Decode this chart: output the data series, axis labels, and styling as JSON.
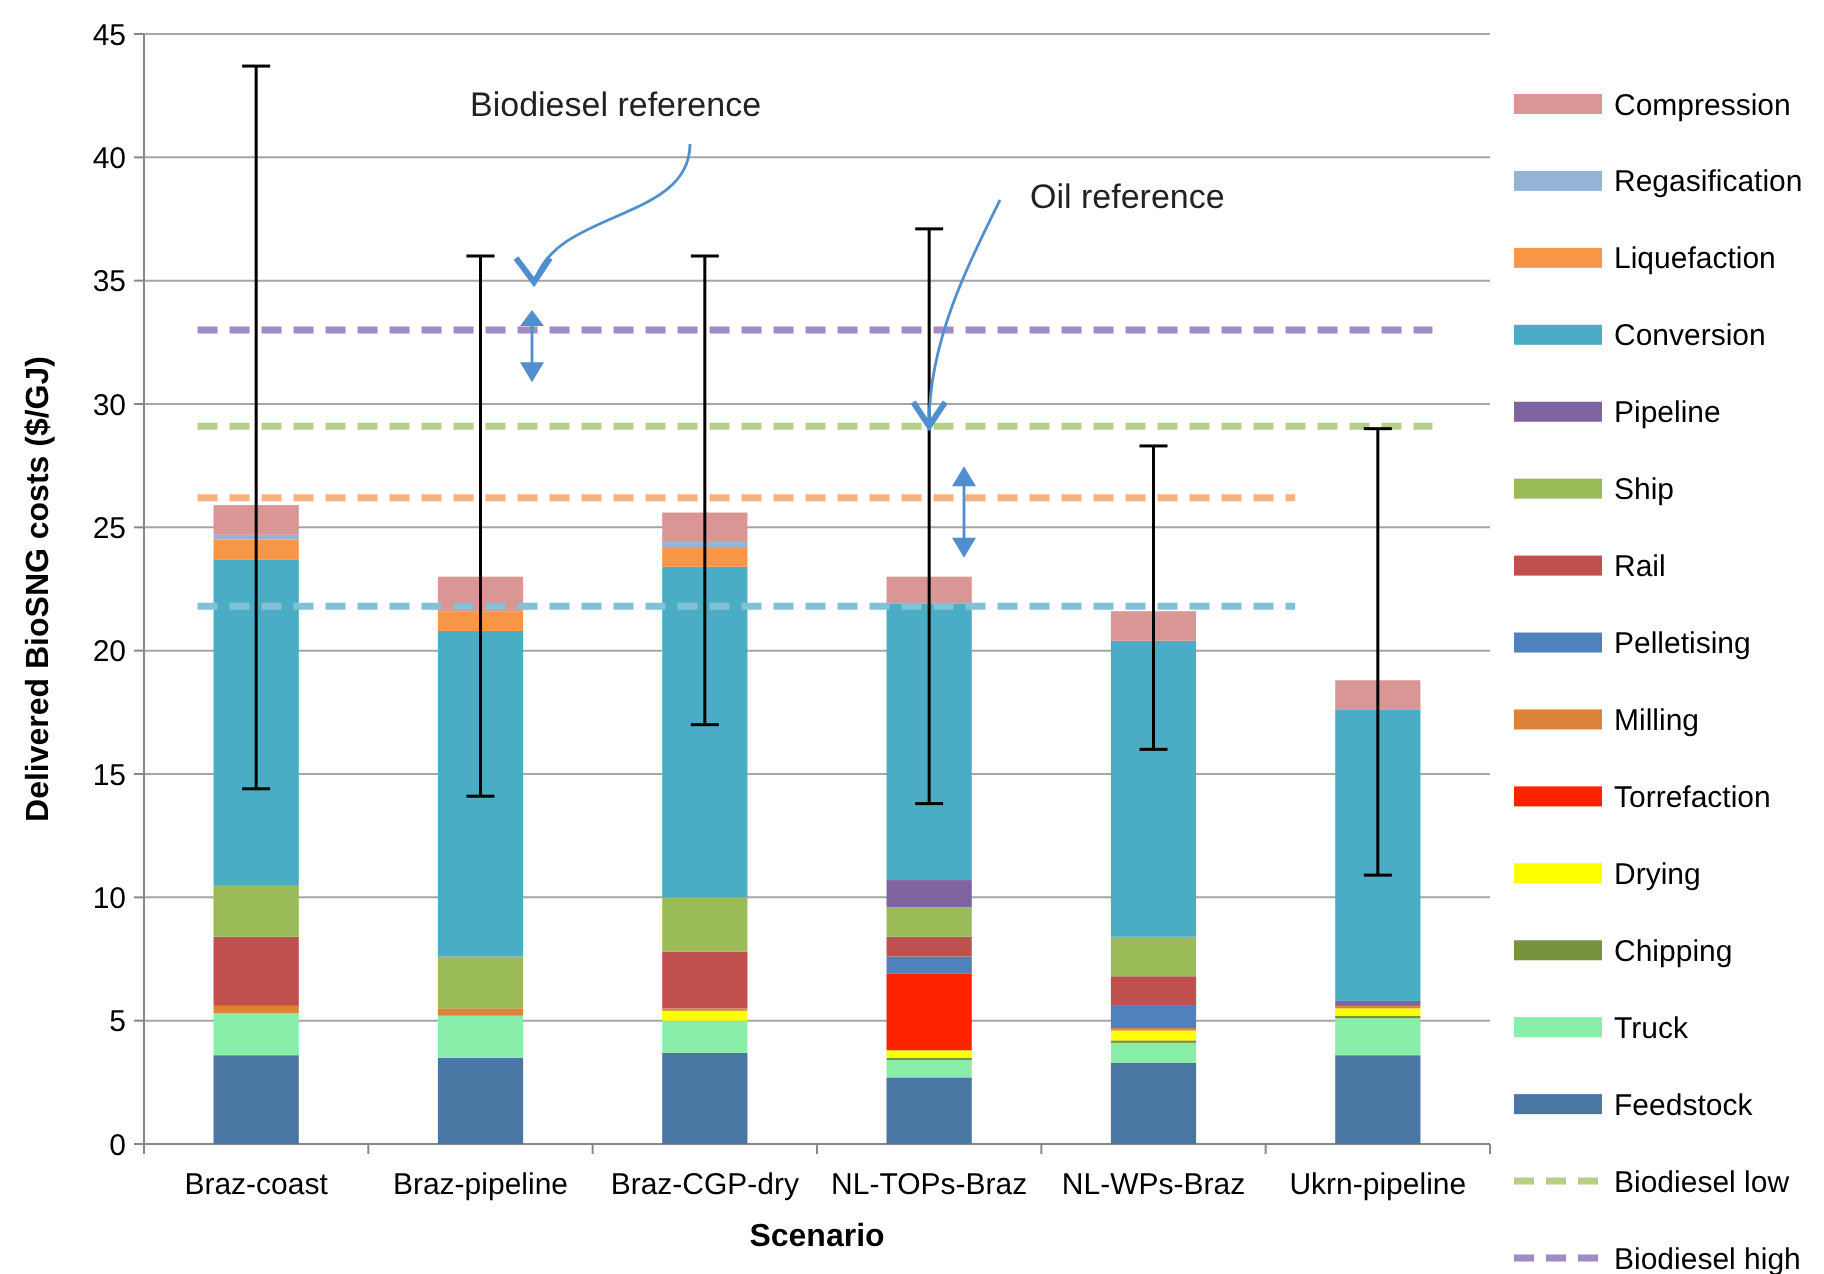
{
  "chart_data": {
    "type": "bar",
    "stacked": true,
    "xlabel": "Scenario",
    "ylabel": "Delivered BioSNG costs ($/GJ)",
    "categories": [
      "Braz-coast",
      "Braz-pipeline",
      "Braz-CGP-dry",
      "NL-TOPs-Braz",
      "NL-WPs-Braz",
      "Ukrn-pipeline"
    ],
    "ylim": [
      0,
      45
    ],
    "yticks": [
      0,
      5,
      10,
      15,
      20,
      25,
      30,
      35,
      40,
      45
    ],
    "grid": "y",
    "legend": "right",
    "series": [
      {
        "name": "Feedstock",
        "color": "#4a76a4",
        "values": [
          3.6,
          3.5,
          3.7,
          2.7,
          3.3,
          3.6
        ]
      },
      {
        "name": "Truck",
        "color": "#88eeaa",
        "values": [
          1.7,
          1.7,
          1.3,
          0.7,
          0.8,
          1.5
        ]
      },
      {
        "name": "Chipping",
        "color": "#77933c",
        "values": [
          0,
          0,
          0,
          0.1,
          0.1,
          0.1
        ]
      },
      {
        "name": "Drying",
        "color": "#ffff00",
        "values": [
          0,
          0,
          0.4,
          0.3,
          0.4,
          0.3
        ]
      },
      {
        "name": "Torrefaction",
        "color": "#ff2200",
        "values": [
          0,
          0,
          0,
          3.1,
          0,
          0
        ]
      },
      {
        "name": "Milling",
        "color": "#d9843a",
        "values": [
          0.3,
          0.3,
          0.1,
          0,
          0.1,
          0.1
        ]
      },
      {
        "name": "Pelletising",
        "color": "#4f81bd",
        "values": [
          0,
          0,
          0,
          0.7,
          0.9,
          0
        ]
      },
      {
        "name": "Rail",
        "color": "#c0504d",
        "values": [
          2.8,
          0,
          2.3,
          0.8,
          1.2,
          0
        ]
      },
      {
        "name": "Ship",
        "color": "#9bbb59",
        "values": [
          2.1,
          2.1,
          2.2,
          1.2,
          1.6,
          0
        ]
      },
      {
        "name": "Pipeline",
        "color": "#8064a2",
        "values": [
          0,
          0,
          0,
          1.1,
          0,
          0.2
        ]
      },
      {
        "name": "Conversion",
        "color": "#4bacc6",
        "values": [
          13.2,
          13.2,
          13.4,
          11.2,
          12.0,
          11.8
        ]
      },
      {
        "name": "Liquefaction",
        "color": "#f79646",
        "values": [
          0.8,
          0.8,
          0.8,
          0,
          0,
          0
        ]
      },
      {
        "name": "Regasification",
        "color": "#95b3d7",
        "values": [
          0.2,
          0,
          0.2,
          0,
          0,
          0
        ]
      },
      {
        "name": "Compression",
        "color": "#d99694",
        "values": [
          1.2,
          1.4,
          1.2,
          1.1,
          1.2,
          1.2
        ],
        "errors": [
          [
            14.4,
            43.7
          ],
          [
            14.1,
            36.0
          ],
          [
            17.0,
            36.0
          ],
          [
            13.8,
            37.1
          ],
          [
            16.0,
            28.3
          ],
          [
            10.9,
            29.0
          ]
        ]
      }
    ],
    "ref_lines": [
      {
        "axis": "y",
        "value": 33,
        "label": "Biodiesel high",
        "color": "#9f8cc4",
        "line_style": "dashed"
      },
      {
        "axis": "y",
        "value": 29.1,
        "label": "Biodiesel low",
        "color": "#b5cf84",
        "line_style": "dashed"
      },
      {
        "axis": "y",
        "value": 26.2,
        "color": "#f8b07c",
        "line_style": "dashed"
      },
      {
        "axis": "y",
        "value": 21.8,
        "color": "#7fc3d6",
        "line_style": "dashed"
      }
    ],
    "annotations": [
      "Biodiesel reference",
      {
        "text": "Oil reference",
        "x": "NL-TOPs-Braz",
        "y": 29.1
      }
    ]
  }
}
